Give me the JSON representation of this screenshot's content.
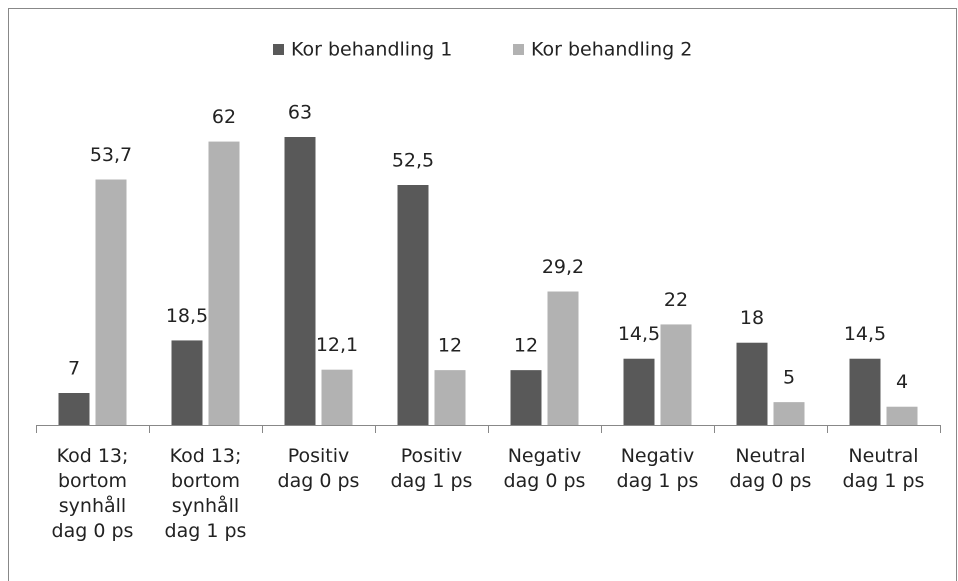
{
  "chart_data": {
    "type": "bar",
    "categories": [
      "Kod 13; bortom synhåll dag 0 ps",
      "Kod 13; bortom synhåll dag 1 ps",
      "Positiv dag 0 ps",
      "Positiv dag 1 ps",
      "Negativ dag 0 ps",
      "Negativ dag 1 ps",
      "Neutral dag 0 ps",
      "Neutral dag 1 ps"
    ],
    "series": [
      {
        "name": "Kor behandling 1",
        "color": "#595959",
        "values": [
          7,
          18.5,
          63,
          52.5,
          12,
          14.5,
          18,
          14.5
        ],
        "value_labels": [
          "7",
          "18,5",
          "63",
          "52,5",
          "12",
          "14,5",
          "18",
          "14,5"
        ]
      },
      {
        "name": "Kor behandling 2",
        "color": "#b2b2b2",
        "values": [
          53.7,
          62,
          12.1,
          12,
          29.2,
          22,
          5,
          4
        ],
        "value_labels": [
          "53,7",
          "62",
          "12,1",
          "12",
          "29,2",
          "22",
          "5",
          "4"
        ]
      }
    ],
    "legend": "top"
  }
}
